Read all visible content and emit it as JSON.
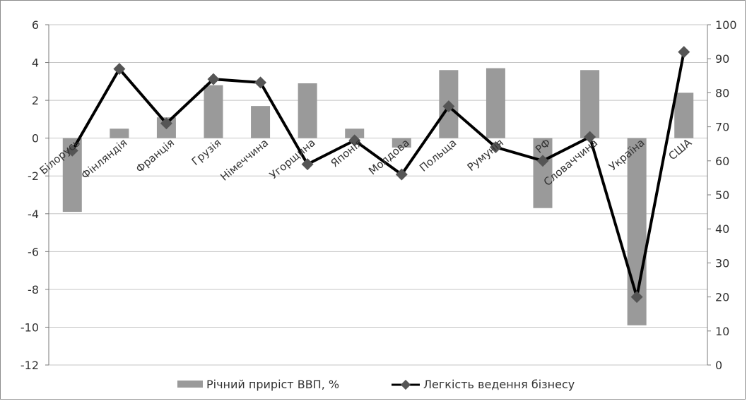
{
  "chart_data": {
    "type": "bar+line",
    "categories": [
      "Білорусь",
      "Фінляндія",
      "Франція",
      "Грузія",
      "Німеччина",
      "Угорщина",
      "Японія",
      "Молдова",
      "Польща",
      "Румунія",
      "РФ",
      "Словаччина",
      "Україна",
      "США"
    ],
    "series": [
      {
        "name": "Річний приріст ВВП, %",
        "kind": "bar",
        "axis": "left",
        "color": "#9a9a9a",
        "values": [
          -3.9,
          0.5,
          1.1,
          2.8,
          1.7,
          2.9,
          0.5,
          -0.5,
          3.6,
          3.7,
          -3.7,
          3.6,
          -9.9,
          2.4
        ]
      },
      {
        "name": "Легкість ведення бізнесу",
        "kind": "line",
        "axis": "right",
        "color": "#000000",
        "marker_color": "#555555",
        "values": [
          63,
          87,
          71,
          84,
          83,
          59,
          66,
          56,
          76,
          64,
          60,
          67,
          20,
          92
        ]
      }
    ],
    "y_left": {
      "min": -12,
      "max": 6,
      "ticks": [
        6,
        4,
        2,
        0,
        -2,
        -4,
        -6,
        -8,
        -10,
        -12
      ]
    },
    "y_right": {
      "min": 0,
      "max": 100,
      "ticks": [
        100,
        90,
        80,
        70,
        60,
        50,
        40,
        30,
        20,
        10,
        0
      ]
    },
    "grid": true,
    "legend_position": "bottom"
  }
}
